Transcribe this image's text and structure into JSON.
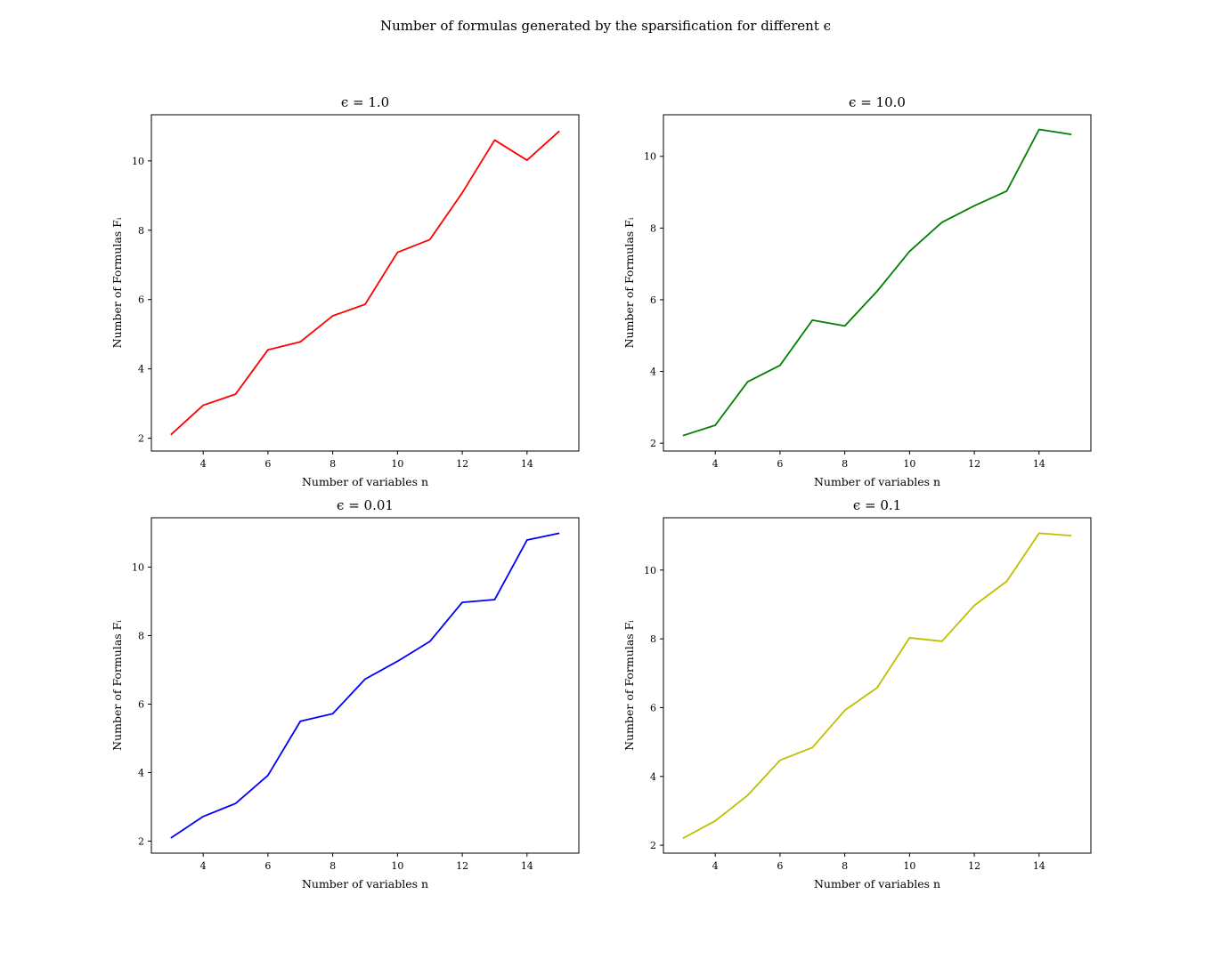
{
  "figure": {
    "title": "Number of formulas generated by the sparsification for different ϵ"
  },
  "chart_data": [
    {
      "type": "line",
      "title": "ϵ = 1.0",
      "xlabel": "Number of variables n",
      "ylabel": "Number of Formulas Fᵢ",
      "color": "#ff0000",
      "x": [
        3,
        4,
        5,
        6,
        7,
        8,
        9,
        10,
        11,
        12,
        13,
        14,
        15
      ],
      "y": [
        2.1,
        2.95,
        3.27,
        4.55,
        4.78,
        5.53,
        5.86,
        7.36,
        7.73,
        9.08,
        10.6,
        10.02,
        10.86
      ],
      "xlim": [
        2.4,
        15.6
      ],
      "ylim": [
        1.63,
        11.33
      ],
      "xticks": [
        4,
        6,
        8,
        10,
        12,
        14
      ],
      "yticks": [
        2,
        4,
        6,
        8,
        10
      ],
      "grid": false
    },
    {
      "type": "line",
      "title": "ϵ = 10.0",
      "xlabel": "Number of variables n",
      "ylabel": "Number of Formulas Fᵢ",
      "color": "#008000",
      "x": [
        3,
        4,
        5,
        6,
        7,
        8,
        9,
        10,
        11,
        12,
        13,
        14,
        15
      ],
      "y": [
        2.21,
        2.5,
        3.71,
        4.17,
        5.43,
        5.27,
        6.24,
        7.35,
        8.16,
        8.62,
        9.03,
        10.75,
        10.61
      ],
      "xlim": [
        2.4,
        15.6
      ],
      "ylim": [
        1.78,
        11.16
      ],
      "xticks": [
        4,
        6,
        8,
        10,
        12,
        14
      ],
      "yticks": [
        2,
        4,
        6,
        8,
        10
      ],
      "grid": false
    },
    {
      "type": "line",
      "title": "ϵ = 0.01",
      "xlabel": "Number of variables n",
      "ylabel": "Number of Formulas Fᵢ",
      "color": "#0000ff",
      "x": [
        3,
        4,
        5,
        6,
        7,
        8,
        9,
        10,
        11,
        12,
        13,
        14,
        15
      ],
      "y": [
        2.09,
        2.72,
        3.1,
        3.92,
        5.5,
        5.72,
        6.73,
        7.25,
        7.83,
        8.97,
        9.05,
        10.79,
        10.99
      ],
      "xlim": [
        2.4,
        15.6
      ],
      "ylim": [
        1.65,
        11.44
      ],
      "xticks": [
        4,
        6,
        8,
        10,
        12,
        14
      ],
      "yticks": [
        2,
        4,
        6,
        8,
        10
      ],
      "grid": false
    },
    {
      "type": "line",
      "title": "ϵ = 0.1",
      "xlabel": "Number of variables n",
      "ylabel": "Number of Formulas Fᵢ",
      "color": "#bfbf00",
      "x": [
        3,
        4,
        5,
        6,
        7,
        8,
        9,
        10,
        11,
        12,
        13,
        14,
        15
      ],
      "y": [
        2.2,
        2.71,
        3.45,
        4.47,
        4.84,
        5.92,
        6.58,
        8.03,
        7.93,
        8.97,
        9.67,
        11.07,
        11.0
      ],
      "xlim": [
        2.4,
        15.6
      ],
      "ylim": [
        1.77,
        11.52
      ],
      "xticks": [
        4,
        6,
        8,
        10,
        12,
        14
      ],
      "yticks": [
        2,
        4,
        6,
        8,
        10
      ],
      "grid": false
    }
  ]
}
